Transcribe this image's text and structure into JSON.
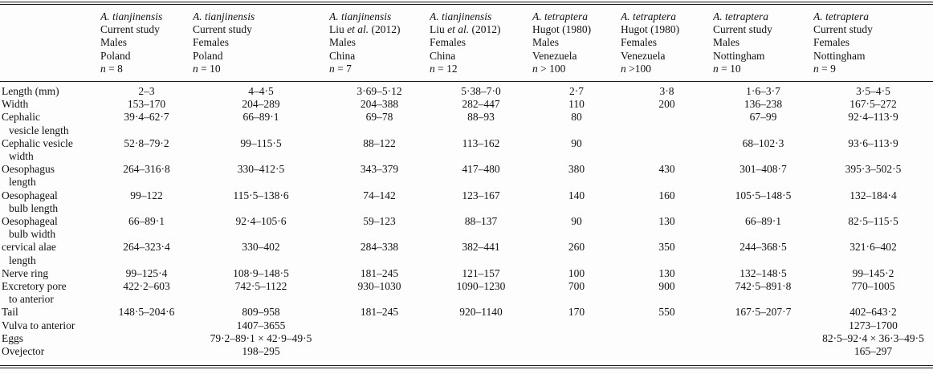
{
  "colors": {
    "text": "#121212",
    "rule": "#1a1a1a",
    "background": "#fdfdfd"
  },
  "table": {
    "columns": [
      {
        "species": "A. tianjinensis",
        "study_parts": [
          "Current study",
          "",
          ""
        ],
        "sex": "Males",
        "location": "Poland",
        "n_italic": "n",
        "n_rest": " = 8"
      },
      {
        "species": "A. tianjinensis",
        "study_parts": [
          "Current study",
          "",
          ""
        ],
        "sex": "Females",
        "location": "Poland",
        "n_italic": "n",
        "n_rest": " = 10"
      },
      {
        "species": "A. tianjinensis",
        "study_parts": [
          "Liu ",
          "et al.",
          " (2012)"
        ],
        "sex": "Males",
        "location": "China",
        "n_italic": "n",
        "n_rest": " = 7"
      },
      {
        "species": "A. tianjinensis",
        "study_parts": [
          "Liu ",
          "et al.",
          " (2012)"
        ],
        "sex": "Females",
        "location": "China",
        "n_italic": "n",
        "n_rest": " = 12"
      },
      {
        "species": "A. tetraptera",
        "study_parts": [
          "Hugot (1980)",
          "",
          ""
        ],
        "sex": "Males",
        "location": "Venezuela",
        "n_italic": "n",
        "n_rest": " > 100"
      },
      {
        "species": "A. tetraptera",
        "study_parts": [
          "Hugot (1980)",
          "",
          ""
        ],
        "sex": "Females",
        "location": "Venezuela",
        "n_italic": "n",
        "n_rest": " >100"
      },
      {
        "species": "A. tetraptera",
        "study_parts": [
          "Current study",
          "",
          ""
        ],
        "sex": "Males",
        "location": "Nottingham",
        "n_italic": "n",
        "n_rest": " = 10"
      },
      {
        "species": "A. tetraptera",
        "study_parts": [
          "Current study",
          "",
          ""
        ],
        "sex": "Females",
        "location": "Nottingham",
        "n_italic": "n",
        "n_rest": " = 9"
      }
    ],
    "rows": [
      {
        "label": [
          "Length (mm)"
        ],
        "values": [
          "2–3",
          "4–4·5",
          "3·69–5·12",
          "5·38–7·0",
          "2·7",
          "3·8",
          "1·6–3·7",
          "3·5–4·5"
        ]
      },
      {
        "label": [
          "Width"
        ],
        "values": [
          "153–170",
          "204–289",
          "204–388",
          "282–447",
          "110",
          "200",
          "136–238",
          "167·5–272"
        ]
      },
      {
        "label": [
          "Cephalic",
          "vesicle length"
        ],
        "values": [
          "39·4–62·7",
          "66–89·1",
          "69–78",
          "88–93",
          "80",
          "",
          "67–99",
          "92·4–113·9"
        ]
      },
      {
        "label": [
          "Cephalic vesicle",
          "width"
        ],
        "values": [
          "52·8–79·2",
          "99–115·5",
          "88–122",
          "113–162",
          "90",
          "",
          "68–102·3",
          "93·6–113·9"
        ]
      },
      {
        "label": [
          "Oesophagus",
          "length"
        ],
        "values": [
          "264–316·8",
          "330–412·5",
          "343–379",
          "417–480",
          "380",
          "430",
          "301–408·7",
          "395·3–502·5"
        ]
      },
      {
        "label": [
          "Oesophageal",
          "bulb length"
        ],
        "values": [
          "99–122",
          "115·5–138·6",
          "74–142",
          "123–167",
          "140",
          "160",
          "105·5–148·5",
          "132–184·4"
        ]
      },
      {
        "label": [
          "Oesophageal",
          "bulb width"
        ],
        "values": [
          "66–89·1",
          "92·4–105·6",
          "59–123",
          "88–137",
          "90",
          "130",
          "66–89·1",
          "82·5–115·5"
        ]
      },
      {
        "label": [
          "cervical alae",
          "length"
        ],
        "values": [
          "264–323·4",
          "330–402",
          "284–338",
          "382–441",
          "260",
          "350",
          "244–368·5",
          "321·6–402"
        ]
      },
      {
        "label": [
          "Nerve ring"
        ],
        "values": [
          "99–125·4",
          "108·9–148·5",
          "181–245",
          "121–157",
          "100",
          "130",
          "132–148·5",
          "99–145·2"
        ]
      },
      {
        "label": [
          "Excretory pore",
          "to anterior"
        ],
        "values": [
          "422·2–603",
          "742·5–1122",
          "930–1030",
          "1090–1230",
          "700",
          "900",
          "742·5–891·8",
          "770–1005"
        ]
      },
      {
        "label": [
          "Tail"
        ],
        "values": [
          "148·5–204·6",
          "809–958",
          "181–245",
          "920–1140",
          "170",
          "550",
          "167·5–207·7",
          "402–643·2"
        ]
      },
      {
        "label": [
          "Vulva to anterior"
        ],
        "values": [
          "",
          "1407–3655",
          "",
          "",
          "",
          "",
          "",
          "1273–1700"
        ]
      },
      {
        "label": [
          "Eggs"
        ],
        "values": [
          "",
          "79·2–89·1 × 42·9–49·5",
          "",
          "",
          "",
          "",
          "",
          "82·5–92·4 × 36·3–49·5"
        ]
      },
      {
        "label": [
          "Ovejector"
        ],
        "values": [
          "",
          "198–295",
          "",
          "",
          "",
          "",
          "",
          "165–297"
        ]
      }
    ]
  }
}
